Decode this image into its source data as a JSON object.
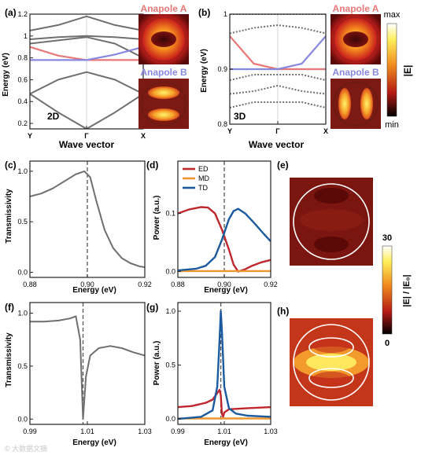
{
  "colors": {
    "axis": "#222222",
    "band": "#6f6f6f",
    "anapole_a": "#e87878",
    "anapole_b": "#8888e0",
    "ed": "#c0272d",
    "md": "#f0962e",
    "td": "#1c5aa0",
    "dashed": "#555555"
  },
  "watermark": "© 大数据文摘",
  "chart_data": [
    {
      "id": "a",
      "type": "line",
      "panel_label": "(a)",
      "inset_label": "2D",
      "xlabel": "Wave vector",
      "ylabel": "Energy (eV)",
      "xticks": [
        "Y",
        "Γ",
        "X"
      ],
      "xlim": [
        0,
        2
      ],
      "yticks": [
        "0.2",
        "0.4",
        "0.6",
        "0.8",
        "1",
        "1.2"
      ],
      "ylim": [
        0.15,
        1.2
      ],
      "series": [
        {
          "role": "grey",
          "x": [
            0,
            0.5,
            1,
            1.5,
            2
          ],
          "y": [
            0.47,
            0.3,
            0.15,
            0.3,
            0.47
          ]
        },
        {
          "role": "grey",
          "x": [
            0,
            0.5,
            1,
            1.5,
            2
          ],
          "y": [
            0.47,
            0.6,
            0.67,
            0.6,
            0.47
          ]
        },
        {
          "role": "grey",
          "x": [
            0,
            0.5,
            1,
            1.5,
            2
          ],
          "y": [
            0.93,
            0.96,
            0.99,
            0.93,
            0.8
          ]
        },
        {
          "role": "grey",
          "x": [
            0,
            0.5,
            1,
            1.5,
            2
          ],
          "y": [
            0.97,
            0.99,
            1.0,
            0.99,
            0.97
          ]
        },
        {
          "role": "grey",
          "x": [
            0,
            0.5,
            1,
            1.5,
            2
          ],
          "y": [
            1.05,
            1.1,
            1.18,
            1.1,
            1.05
          ]
        },
        {
          "role": "anapole_a",
          "x": [
            0,
            0.5,
            1,
            1.5,
            2
          ],
          "y": [
            0.9,
            0.82,
            0.78,
            0.78,
            0.78
          ]
        },
        {
          "role": "anapole_b",
          "x": [
            0,
            0.5,
            1,
            1.5,
            2
          ],
          "y": [
            0.78,
            0.78,
            0.78,
            0.83,
            0.9
          ]
        }
      ]
    },
    {
      "id": "b",
      "type": "line",
      "panel_label": "(b)",
      "inset_label": "3D",
      "xlabel": "Wave vector",
      "ylabel": "Energy (eV)",
      "xticks": [
        "Y",
        "Γ",
        "X"
      ],
      "xlim": [
        0,
        2
      ],
      "yticks": [
        "0.8",
        "0.9",
        "1"
      ],
      "ylim": [
        0.8,
        1.0
      ],
      "series": [
        {
          "role": "grey",
          "x": [
            0,
            0.5,
            1,
            1.5,
            2
          ],
          "y": [
            0.83,
            0.84,
            0.84,
            0.84,
            0.83
          ]
        },
        {
          "role": "grey",
          "x": [
            0,
            0.5,
            1,
            1.5,
            2
          ],
          "y": [
            0.855,
            0.86,
            0.87,
            0.86,
            0.855
          ]
        },
        {
          "role": "grey",
          "x": [
            0,
            0.5,
            1,
            1.5,
            2
          ],
          "y": [
            0.88,
            0.89,
            0.89,
            0.89,
            0.88
          ]
        },
        {
          "role": "grey",
          "x": [
            0,
            0.5,
            1,
            1.5,
            2
          ],
          "y": [
            0.965,
            0.975,
            0.98,
            0.975,
            0.965
          ]
        },
        {
          "role": "grey",
          "x": [
            0,
            0.5,
            1,
            1.5,
            2
          ],
          "y": [
            1.0,
            1.0,
            1.0,
            1.0,
            1.0
          ]
        },
        {
          "role": "anapole_a",
          "x": [
            0,
            0.5,
            1,
            1.5,
            2
          ],
          "y": [
            0.96,
            0.91,
            0.9,
            0.9,
            0.9
          ]
        },
        {
          "role": "anapole_b",
          "x": [
            0,
            0.5,
            1,
            1.5,
            2
          ],
          "y": [
            0.9,
            0.9,
            0.9,
            0.91,
            0.96
          ]
        }
      ]
    },
    {
      "id": "c",
      "type": "line",
      "panel_label": "(c)",
      "xlabel": "Energy (eV)",
      "ylabel": "Transmissivity",
      "xticks": [
        "0.88",
        "0.90",
        "0.92"
      ],
      "xlim": [
        0.88,
        0.92
      ],
      "yticks": [
        "0.0",
        "0.5",
        "1.0"
      ],
      "ylim": [
        -0.05,
        1.1
      ],
      "vline": 0.9,
      "series": [
        {
          "role": "grey",
          "x": [
            0.88,
            0.884,
            0.888,
            0.892,
            0.896,
            0.899,
            0.901,
            0.903,
            0.906,
            0.909,
            0.912,
            0.915,
            0.918,
            0.92
          ],
          "y": [
            0.75,
            0.78,
            0.83,
            0.9,
            0.97,
            1.0,
            0.94,
            0.72,
            0.42,
            0.24,
            0.14,
            0.09,
            0.06,
            0.05
          ]
        }
      ]
    },
    {
      "id": "d",
      "type": "line",
      "panel_label": "(d)",
      "xlabel": "Energy (eV)",
      "ylabel": "Power (a.u.)",
      "xticks": [
        "0.88",
        "0.90",
        "0.92"
      ],
      "xlim": [
        0.88,
        0.92
      ],
      "yticks": [
        "0.0",
        "0.1"
      ],
      "ylim": [
        -0.01,
        0.19
      ],
      "vline": 0.9,
      "legend": [
        "ED",
        "MD",
        "TD"
      ],
      "series": [
        {
          "name": "ED",
          "role": "ed",
          "x": [
            0.88,
            0.885,
            0.89,
            0.893,
            0.896,
            0.899,
            0.902,
            0.904,
            0.906,
            0.909,
            0.912,
            0.916,
            0.92
          ],
          "y": [
            0.1,
            0.107,
            0.111,
            0.11,
            0.1,
            0.072,
            0.038,
            0.012,
            0.0,
            0.004,
            0.01,
            0.016,
            0.02
          ]
        },
        {
          "name": "MD",
          "role": "md",
          "x": [
            0.88,
            0.92
          ],
          "y": [
            0.001,
            0.001
          ]
        },
        {
          "name": "TD",
          "role": "td",
          "x": [
            0.88,
            0.888,
            0.892,
            0.896,
            0.899,
            0.902,
            0.904,
            0.906,
            0.909,
            0.913,
            0.917,
            0.92
          ],
          "y": [
            0.002,
            0.005,
            0.01,
            0.025,
            0.055,
            0.09,
            0.104,
            0.108,
            0.1,
            0.083,
            0.065,
            0.052
          ]
        }
      ]
    },
    {
      "id": "e",
      "type": "heatmap",
      "panel_label": "(e)",
      "colorbar": {
        "label": "|E| / |E₀|",
        "max_label": "30",
        "min_label": "0"
      }
    },
    {
      "id": "f",
      "type": "line",
      "panel_label": "(f)",
      "xlabel": "Energy (eV)",
      "ylabel": "Transmissivity",
      "xticks": [
        "0.99",
        "1.01",
        "1.03"
      ],
      "xlim": [
        0.99,
        1.03
      ],
      "yticks": [
        "0.0",
        "0.5",
        "1.0"
      ],
      "ylim": [
        -0.05,
        1.1
      ],
      "vline": 1.0085,
      "series": [
        {
          "role": "grey",
          "x": [
            0.99,
            0.995,
            1.0,
            1.004,
            1.006,
            1.0075,
            1.0085,
            1.0095,
            1.011,
            1.014,
            1.018,
            1.022,
            1.026,
            1.03
          ],
          "y": [
            0.92,
            0.92,
            0.93,
            0.95,
            0.97,
            0.75,
            0.0,
            0.4,
            0.6,
            0.67,
            0.69,
            0.67,
            0.63,
            0.6
          ]
        }
      ]
    },
    {
      "id": "g",
      "type": "line",
      "panel_label": "(g)",
      "xlabel": "Energy (eV)",
      "ylabel": "Power (a.u.)",
      "xticks": [
        "0.99",
        "1.01",
        "1.03"
      ],
      "xlim": [
        0.99,
        1.03
      ],
      "yticks": [
        "0.0",
        "0.5",
        "1.0"
      ],
      "ylim": [
        -0.05,
        1.08
      ],
      "vline": 1.0085,
      "series": [
        {
          "name": "ED",
          "role": "ed",
          "x": [
            0.99,
            0.996,
            1.002,
            1.005,
            1.007,
            1.008,
            1.0085,
            1.009,
            1.0095,
            1.01,
            1.012,
            1.02,
            1.03
          ],
          "y": [
            0.11,
            0.12,
            0.15,
            0.18,
            0.24,
            0.27,
            0.22,
            0.05,
            0.02,
            0.06,
            0.09,
            0.1,
            0.11
          ]
        },
        {
          "name": "MD",
          "role": "md",
          "x": [
            0.99,
            1.03
          ],
          "y": [
            0.005,
            0.005
          ]
        },
        {
          "name": "TD",
          "role": "td",
          "x": [
            0.99,
            1.0,
            1.005,
            1.007,
            1.008,
            1.0085,
            1.009,
            1.01,
            1.012,
            1.015,
            1.02,
            1.03
          ],
          "y": [
            0.0,
            0.02,
            0.08,
            0.3,
            0.75,
            1.0,
            0.82,
            0.3,
            0.1,
            0.05,
            0.03,
            0.02
          ]
        }
      ]
    },
    {
      "id": "h",
      "type": "heatmap",
      "panel_label": "(h)"
    },
    {
      "id": "b_colorbar",
      "type": "heatmap",
      "colorbar": {
        "label": "|E|",
        "max_label": "max",
        "min_label": "min"
      }
    },
    {
      "id": "mode_labels",
      "type": "table",
      "labels": [
        "Anapole A",
        "Anapole B"
      ]
    }
  ]
}
